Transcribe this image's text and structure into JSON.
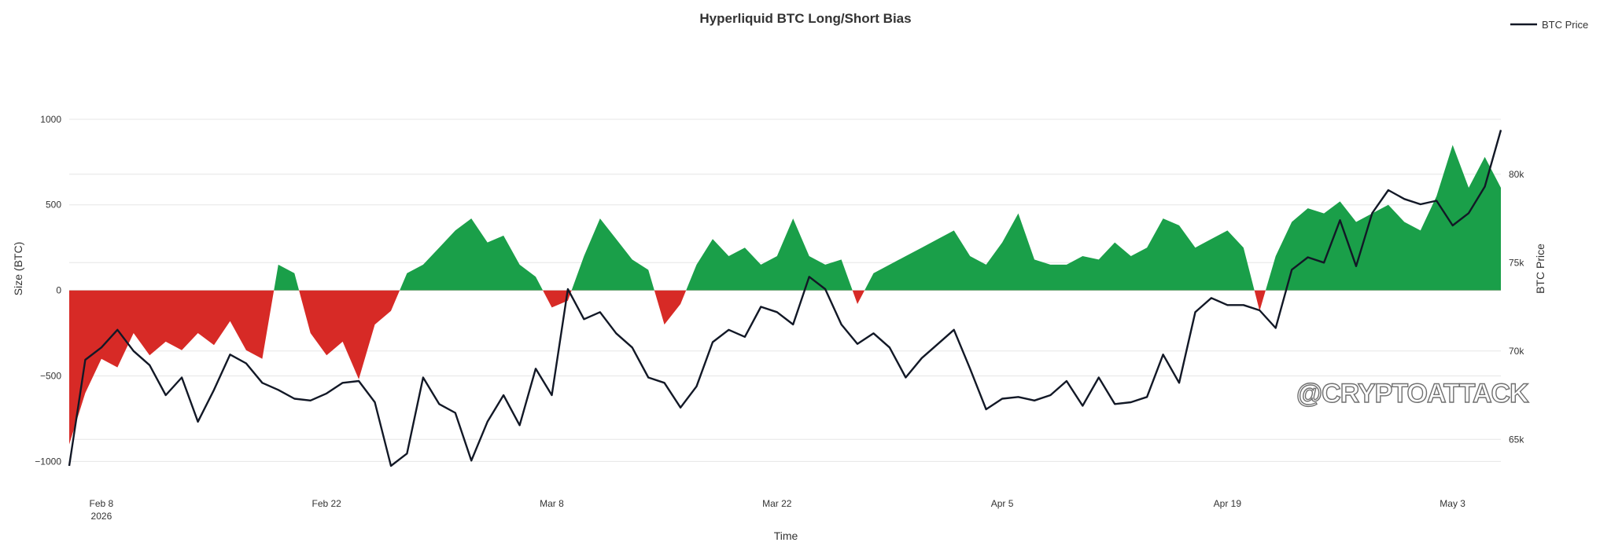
{
  "chart_data": {
    "type": "area",
    "title": "Hyperliquid BTC Long/Short Bias",
    "xlabel": "Time",
    "ylabel_left": "Size (BTC)",
    "ylabel_right": "BTC Price",
    "x_range": [
      "2026-02-06",
      "2026-05-06"
    ],
    "x_ticks": [
      {
        "date": "2026-02-08",
        "label": "Feb 8",
        "sublabel": "2026"
      },
      {
        "date": "2026-02-22",
        "label": "Feb 22",
        "sublabel": ""
      },
      {
        "date": "2026-03-08",
        "label": "Mar 8",
        "sublabel": ""
      },
      {
        "date": "2026-03-22",
        "label": "Mar 22",
        "sublabel": ""
      },
      {
        "date": "2026-04-05",
        "label": "Apr 5",
        "sublabel": ""
      },
      {
        "date": "2026-04-19",
        "label": "Apr 19",
        "sublabel": ""
      },
      {
        "date": "2026-05-03",
        "label": "May 3",
        "sublabel": ""
      }
    ],
    "left_axis": {
      "ticks": [
        1000,
        500,
        0,
        -500,
        -1000
      ],
      "tick_labels": [
        "1000",
        "500",
        "0",
        "−500",
        "−1000"
      ],
      "ylim": [
        -1150,
        1330
      ]
    },
    "right_axis": {
      "ticks": [
        80000,
        75000,
        70000,
        65000
      ],
      "tick_labels": [
        "80k",
        "75k",
        "70k",
        "65k"
      ],
      "ylim": [
        62300,
        86300
      ]
    },
    "grid": true,
    "legend": {
      "position": "top-right",
      "entries": [
        "BTC Price"
      ]
    },
    "series": [
      {
        "name": "Size (BTC)",
        "kind": "area",
        "positive_color": "#1a9f49",
        "negative_color": "#d72a26",
        "points": [
          [
            "2026-02-06",
            -900
          ],
          [
            "2026-02-07",
            -600
          ],
          [
            "2026-02-08",
            -400
          ],
          [
            "2026-02-09",
            -450
          ],
          [
            "2026-02-10",
            -250
          ],
          [
            "2026-02-11",
            -380
          ],
          [
            "2026-02-12",
            -300
          ],
          [
            "2026-02-13",
            -350
          ],
          [
            "2026-02-14",
            -250
          ],
          [
            "2026-02-15",
            -320
          ],
          [
            "2026-02-16",
            -180
          ],
          [
            "2026-02-17",
            -350
          ],
          [
            "2026-02-18",
            -400
          ],
          [
            "2026-02-19",
            150
          ],
          [
            "2026-02-20",
            100
          ],
          [
            "2026-02-21",
            -250
          ],
          [
            "2026-02-22",
            -380
          ],
          [
            "2026-02-23",
            -300
          ],
          [
            "2026-02-24",
            -520
          ],
          [
            "2026-02-25",
            -200
          ],
          [
            "2026-02-26",
            -120
          ],
          [
            "2026-02-27",
            100
          ],
          [
            "2026-02-28",
            150
          ],
          [
            "2026-03-01",
            250
          ],
          [
            "2026-03-02",
            350
          ],
          [
            "2026-03-03",
            420
          ],
          [
            "2026-03-04",
            280
          ],
          [
            "2026-03-05",
            320
          ],
          [
            "2026-03-06",
            150
          ],
          [
            "2026-03-07",
            80
          ],
          [
            "2026-03-08",
            -100
          ],
          [
            "2026-03-09",
            -60
          ],
          [
            "2026-03-10",
            200
          ],
          [
            "2026-03-11",
            420
          ],
          [
            "2026-03-12",
            300
          ],
          [
            "2026-03-13",
            180
          ],
          [
            "2026-03-14",
            120
          ],
          [
            "2026-03-15",
            -200
          ],
          [
            "2026-03-16",
            -80
          ],
          [
            "2026-03-17",
            150
          ],
          [
            "2026-03-18",
            300
          ],
          [
            "2026-03-19",
            200
          ],
          [
            "2026-03-20",
            250
          ],
          [
            "2026-03-21",
            150
          ],
          [
            "2026-03-22",
            200
          ],
          [
            "2026-03-23",
            420
          ],
          [
            "2026-03-24",
            200
          ],
          [
            "2026-03-25",
            150
          ],
          [
            "2026-03-26",
            180
          ],
          [
            "2026-03-27",
            -80
          ],
          [
            "2026-03-28",
            100
          ],
          [
            "2026-03-29",
            150
          ],
          [
            "2026-03-30",
            200
          ],
          [
            "2026-03-31",
            250
          ],
          [
            "2026-04-01",
            300
          ],
          [
            "2026-04-02",
            350
          ],
          [
            "2026-04-03",
            200
          ],
          [
            "2026-04-04",
            150
          ],
          [
            "2026-04-05",
            280
          ],
          [
            "2026-04-06",
            450
          ],
          [
            "2026-04-07",
            180
          ],
          [
            "2026-04-08",
            150
          ],
          [
            "2026-04-09",
            150
          ],
          [
            "2026-04-10",
            200
          ],
          [
            "2026-04-11",
            180
          ],
          [
            "2026-04-12",
            280
          ],
          [
            "2026-04-13",
            200
          ],
          [
            "2026-04-14",
            250
          ],
          [
            "2026-04-15",
            420
          ],
          [
            "2026-04-16",
            380
          ],
          [
            "2026-04-17",
            250
          ],
          [
            "2026-04-18",
            300
          ],
          [
            "2026-04-19",
            350
          ],
          [
            "2026-04-20",
            250
          ],
          [
            "2026-04-21",
            -120
          ],
          [
            "2026-04-22",
            200
          ],
          [
            "2026-04-23",
            400
          ],
          [
            "2026-04-24",
            480
          ],
          [
            "2026-04-25",
            450
          ],
          [
            "2026-04-26",
            520
          ],
          [
            "2026-04-27",
            400
          ],
          [
            "2026-04-28",
            450
          ],
          [
            "2026-04-29",
            500
          ],
          [
            "2026-04-30",
            400
          ],
          [
            "2026-05-01",
            350
          ],
          [
            "2026-05-02",
            550
          ],
          [
            "2026-05-03",
            850
          ],
          [
            "2026-05-04",
            600
          ],
          [
            "2026-05-05",
            780
          ],
          [
            "2026-05-06",
            600
          ]
        ]
      },
      {
        "name": "BTC Price",
        "kind": "line",
        "color": "#121826",
        "points": [
          [
            "2026-02-06",
            63500
          ],
          [
            "2026-02-07",
            69500
          ],
          [
            "2026-02-08",
            70200
          ],
          [
            "2026-02-09",
            71200
          ],
          [
            "2026-02-10",
            70000
          ],
          [
            "2026-02-11",
            69200
          ],
          [
            "2026-02-12",
            67500
          ],
          [
            "2026-02-13",
            68500
          ],
          [
            "2026-02-14",
            66000
          ],
          [
            "2026-02-15",
            67800
          ],
          [
            "2026-02-16",
            69800
          ],
          [
            "2026-02-17",
            69300
          ],
          [
            "2026-02-18",
            68200
          ],
          [
            "2026-02-19",
            67800
          ],
          [
            "2026-02-20",
            67300
          ],
          [
            "2026-02-21",
            67200
          ],
          [
            "2026-02-22",
            67600
          ],
          [
            "2026-02-23",
            68200
          ],
          [
            "2026-02-24",
            68300
          ],
          [
            "2026-02-25",
            67100
          ],
          [
            "2026-02-26",
            63500
          ],
          [
            "2026-02-27",
            64200
          ],
          [
            "2026-02-28",
            68500
          ],
          [
            "2026-03-01",
            67000
          ],
          [
            "2026-03-02",
            66500
          ],
          [
            "2026-03-03",
            63800
          ],
          [
            "2026-03-04",
            66000
          ],
          [
            "2026-03-05",
            67500
          ],
          [
            "2026-03-06",
            65800
          ],
          [
            "2026-03-07",
            69000
          ],
          [
            "2026-03-08",
            67500
          ],
          [
            "2026-03-09",
            73500
          ],
          [
            "2026-03-10",
            71800
          ],
          [
            "2026-03-11",
            72200
          ],
          [
            "2026-03-12",
            71000
          ],
          [
            "2026-03-13",
            70200
          ],
          [
            "2026-03-14",
            68500
          ],
          [
            "2026-03-15",
            68200
          ],
          [
            "2026-03-16",
            66800
          ],
          [
            "2026-03-17",
            68000
          ],
          [
            "2026-03-18",
            70500
          ],
          [
            "2026-03-19",
            71200
          ],
          [
            "2026-03-20",
            70800
          ],
          [
            "2026-03-21",
            72500
          ],
          [
            "2026-03-22",
            72200
          ],
          [
            "2026-03-23",
            71500
          ],
          [
            "2026-03-24",
            74200
          ],
          [
            "2026-03-25",
            73500
          ],
          [
            "2026-03-26",
            71500
          ],
          [
            "2026-03-27",
            70400
          ],
          [
            "2026-03-28",
            71000
          ],
          [
            "2026-03-29",
            70200
          ],
          [
            "2026-03-30",
            68500
          ],
          [
            "2026-03-31",
            69600
          ],
          [
            "2026-04-01",
            70400
          ],
          [
            "2026-04-02",
            71200
          ],
          [
            "2026-04-03",
            69000
          ],
          [
            "2026-04-04",
            66700
          ],
          [
            "2026-04-05",
            67300
          ],
          [
            "2026-04-06",
            67400
          ],
          [
            "2026-04-07",
            67200
          ],
          [
            "2026-04-08",
            67500
          ],
          [
            "2026-04-09",
            68300
          ],
          [
            "2026-04-10",
            66900
          ],
          [
            "2026-04-11",
            68500
          ],
          [
            "2026-04-12",
            67000
          ],
          [
            "2026-04-13",
            67100
          ],
          [
            "2026-04-14",
            67400
          ],
          [
            "2026-04-15",
            69800
          ],
          [
            "2026-04-16",
            68200
          ],
          [
            "2026-04-17",
            72200
          ],
          [
            "2026-04-18",
            73000
          ],
          [
            "2026-04-19",
            72600
          ],
          [
            "2026-04-20",
            72600
          ],
          [
            "2026-04-21",
            72300
          ],
          [
            "2026-04-22",
            71300
          ],
          [
            "2026-04-23",
            74600
          ],
          [
            "2026-04-24",
            75300
          ],
          [
            "2026-04-25",
            75000
          ],
          [
            "2026-04-26",
            77400
          ],
          [
            "2026-04-27",
            74800
          ],
          [
            "2026-04-28",
            77800
          ],
          [
            "2026-04-29",
            79100
          ],
          [
            "2026-04-30",
            78600
          ],
          [
            "2026-05-01",
            78300
          ],
          [
            "2026-05-02",
            78500
          ],
          [
            "2026-05-03",
            77100
          ],
          [
            "2026-05-04",
            77800
          ],
          [
            "2026-05-05",
            79300
          ],
          [
            "2026-05-06",
            82500
          ]
        ]
      }
    ]
  },
  "watermark_text": "@CRYPTOATTACK"
}
